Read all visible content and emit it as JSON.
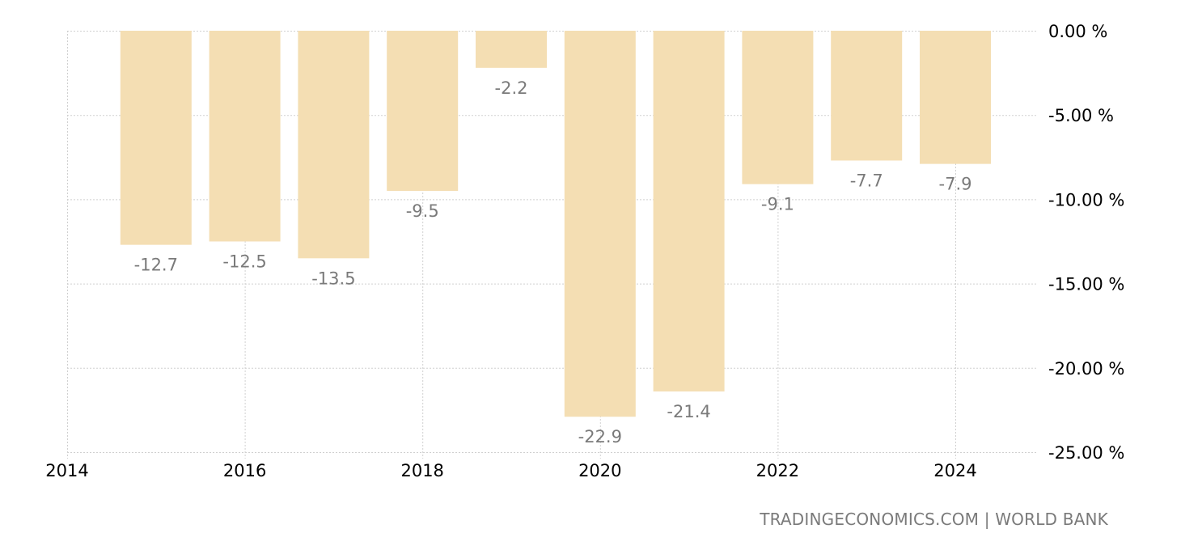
{
  "chart_data": {
    "type": "bar",
    "title": "",
    "xlabel": "",
    "ylabel": "",
    "categories": [
      "2015",
      "2016",
      "2017",
      "2018",
      "2019",
      "2020",
      "2021",
      "2022",
      "2023",
      "2024"
    ],
    "values": [
      -12.7,
      -12.5,
      -13.5,
      -9.5,
      -2.2,
      -22.9,
      -21.4,
      -9.1,
      -7.7,
      -7.9
    ],
    "data_labels": [
      "-12.7",
      "-12.5",
      "-13.5",
      "-9.5",
      "-2.2",
      "-22.9",
      "-21.4",
      "-9.1",
      "-7.7",
      "-7.9"
    ],
    "x_ticks": [
      "2014",
      "2016",
      "2018",
      "2020",
      "2022",
      "2024"
    ],
    "y_ticks": [
      "0.00 %",
      "-5.00 %",
      "-10.00 %",
      "-15.00 %",
      "-20.00 %",
      "-25.00 %"
    ],
    "y_tick_values": [
      0,
      -5,
      -10,
      -15,
      -20,
      -25
    ],
    "ylim": [
      -25,
      0
    ],
    "xlim": [
      2014,
      2025
    ],
    "grid": true,
    "legend": null,
    "y_axis_position": "right",
    "colors": {
      "bar": "#f4deb3",
      "grid": "#d0d0d0",
      "label": "#7a7a7a",
      "tick": "#000000"
    }
  },
  "footer": {
    "source": "TRADINGECONOMICS.COM | WORLD BANK"
  }
}
